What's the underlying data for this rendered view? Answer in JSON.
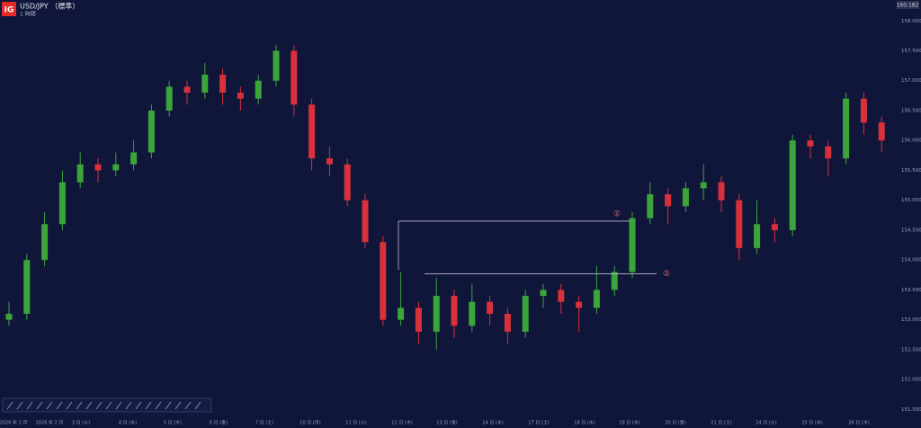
{
  "header": {
    "logo": "IG",
    "symbol": "USD/JPY （標準）",
    "interval": "1 時間"
  },
  "price_label": "160.182",
  "chart_data": {
    "type": "candlestick",
    "colors": {
      "up": "#3ba53a",
      "down": "#d8313b",
      "background": "#10163a"
    },
    "open": [
      153.0,
      153.1,
      154.0,
      154.6,
      155.3,
      155.6,
      155.5,
      155.6,
      155.8,
      156.5,
      156.9,
      156.8,
      157.1,
      156.8,
      156.7,
      157.0,
      157.5,
      156.6,
      155.7,
      155.6,
      155.0,
      154.3,
      153.0,
      153.2,
      152.8,
      153.4,
      152.9,
      153.3,
      153.1,
      152.8,
      153.4,
      153.5,
      153.3,
      153.2,
      153.5,
      153.8,
      154.7,
      155.1,
      154.9,
      155.2,
      155.3,
      155.0,
      154.2,
      154.6,
      154.5,
      156.0,
      155.9,
      155.7,
      156.7,
      156.3
    ],
    "high": [
      153.3,
      154.1,
      154.8,
      155.5,
      155.8,
      155.7,
      155.8,
      156.0,
      156.6,
      157.0,
      157.0,
      157.3,
      157.2,
      156.9,
      157.1,
      157.6,
      157.6,
      156.7,
      155.9,
      155.7,
      155.1,
      154.4,
      153.8,
      153.3,
      153.7,
      153.5,
      153.6,
      153.4,
      153.2,
      153.5,
      153.6,
      153.6,
      153.4,
      153.9,
      153.9,
      154.8,
      155.3,
      155.2,
      155.3,
      155.6,
      155.4,
      155.1,
      155.0,
      154.7,
      156.1,
      156.1,
      156.0,
      156.8,
      156.8,
      156.4
    ],
    "low": [
      152.9,
      153.0,
      153.9,
      154.5,
      155.2,
      155.3,
      155.4,
      155.5,
      155.7,
      156.4,
      156.6,
      156.7,
      156.6,
      156.5,
      156.6,
      156.9,
      156.4,
      155.5,
      155.4,
      154.9,
      154.2,
      152.9,
      152.9,
      152.6,
      152.5,
      152.7,
      152.8,
      152.9,
      152.6,
      152.7,
      153.2,
      153.1,
      152.8,
      153.1,
      153.4,
      153.7,
      154.6,
      154.6,
      154.8,
      155.0,
      154.8,
      154.0,
      154.1,
      154.3,
      154.4,
      155.7,
      155.4,
      155.6,
      156.1,
      155.8
    ],
    "close": [
      153.1,
      154.0,
      154.6,
      155.3,
      155.6,
      155.5,
      155.6,
      155.8,
      156.5,
      156.9,
      156.8,
      157.1,
      156.8,
      156.7,
      157.0,
      157.5,
      156.6,
      155.7,
      155.6,
      155.0,
      154.3,
      153.0,
      153.2,
      152.8,
      153.4,
      152.9,
      153.3,
      153.1,
      152.8,
      153.4,
      153.5,
      153.3,
      153.2,
      153.5,
      153.8,
      154.7,
      155.1,
      154.9,
      155.2,
      155.3,
      155.0,
      154.2,
      154.6,
      154.5,
      156.0,
      155.9,
      155.7,
      156.7,
      156.3,
      156.0
    ],
    "ylim": [
      151.4,
      158.35
    ],
    "yticks": [
      {
        "value": 158,
        "label": "158.000"
      },
      {
        "value": 157.5,
        "label": "157.500"
      },
      {
        "value": 157,
        "label": "157.000"
      },
      {
        "value": 156.5,
        "label": "156.500"
      },
      {
        "value": 156,
        "label": "156.000"
      },
      {
        "value": 155.5,
        "label": "155.500"
      },
      {
        "value": 155,
        "label": "155.000"
      },
      {
        "value": 154.5,
        "label": "154.500"
      },
      {
        "value": 154,
        "label": "154.000"
      },
      {
        "value": 153.5,
        "label": "153.500"
      },
      {
        "value": 153,
        "label": "153.000"
      },
      {
        "value": 152.5,
        "label": "152.500"
      },
      {
        "value": 152,
        "label": "152.000"
      },
      {
        "value": 151.5,
        "label": "151.500"
      }
    ],
    "x_labels": [
      "2026 年 1 月",
      "2026 年 2 月",
      "3 日 (火)",
      "4 日 (水)",
      "5 日 (木)",
      "6 日 (金)",
      "7 日 (土)",
      "10 日 (月)",
      "11 日 (火)",
      "12 日 (木)",
      "13 日 (金)",
      "14 日 (水)",
      "17 日 (土)",
      "18 日 (水)",
      "19 日 (木)",
      "20 日 (金)",
      "21 日 (土)",
      "24 日 (火)",
      "25 日 (水)",
      "26 日 (木)"
    ],
    "annotations": [
      {
        "label": "①",
        "value": 154.65
      },
      {
        "label": "②",
        "value": 153.77
      }
    ]
  }
}
